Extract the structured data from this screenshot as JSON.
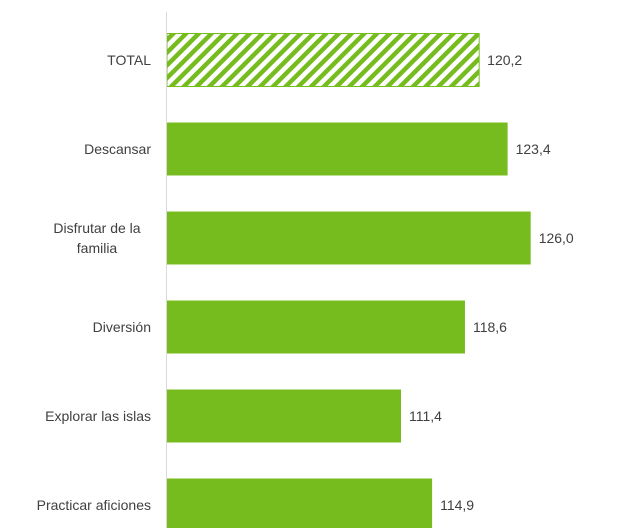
{
  "chart_data": {
    "type": "bar",
    "orientation": "horizontal",
    "title": "",
    "xlabel": "",
    "ylabel": "",
    "categories": [
      [
        "TOTAL"
      ],
      [
        "Descansar"
      ],
      [
        "Disfrutar de la",
        "familia"
      ],
      [
        "Diversión"
      ],
      [
        "Explorar las islas"
      ],
      [
        "Practicar aficiones"
      ]
    ],
    "values": [
      120.2,
      123.4,
      126.0,
      118.6,
      111.4,
      114.9
    ],
    "value_labels": [
      "120,2",
      "123,4",
      "126,0",
      "118,6",
      "111,4",
      "114,9"
    ],
    "highlight_index": 0,
    "xlim": [
      85,
      132
    ],
    "grid": false,
    "colors": {
      "bar": "#77bc1f",
      "hatch_stroke": "#77bc1f",
      "axis": "#d9d9d9",
      "text": "#404040"
    }
  }
}
